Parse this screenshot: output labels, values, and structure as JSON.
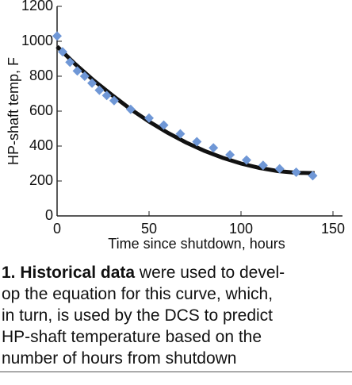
{
  "chart_data": {
    "type": "scatter",
    "xlabel": "Time since shutdown, hours",
    "ylabel": "HP-shaft temp, F",
    "xlim": [
      0,
      150
    ],
    "xticks": [
      0,
      50,
      100,
      150
    ],
    "ylim": [
      0,
      1200
    ],
    "yticks": [
      0,
      200,
      400,
      600,
      800,
      1000,
      1200
    ],
    "points": {
      "color": "#6f97d6",
      "x": [
        0,
        3,
        7,
        11,
        15,
        19,
        23,
        27,
        31,
        40,
        50,
        58,
        67,
        76,
        85,
        94,
        103,
        112,
        121,
        130,
        139
      ],
      "values": [
        1030,
        940,
        880,
        830,
        800,
        760,
        720,
        690,
        660,
        610,
        560,
        520,
        470,
        425,
        390,
        350,
        320,
        290,
        270,
        250,
        230
      ]
    },
    "fit": {
      "color": "#111111",
      "x": [
        0,
        10,
        20,
        30,
        40,
        50,
        60,
        70,
        80,
        90,
        100,
        110,
        120,
        130,
        140
      ],
      "values": [
        970,
        868,
        775,
        691,
        611,
        540,
        477,
        421,
        373,
        333,
        300,
        275,
        257,
        247,
        245
      ]
    }
  },
  "caption": {
    "bold": "1. Historical data",
    "lines": [
      " were used to devel-",
      "op the equation for this curve, which,",
      "in turn, is used by the DCS to predict",
      "HP-shaft temperature based on the",
      "number of hours from shutdown"
    ]
  }
}
